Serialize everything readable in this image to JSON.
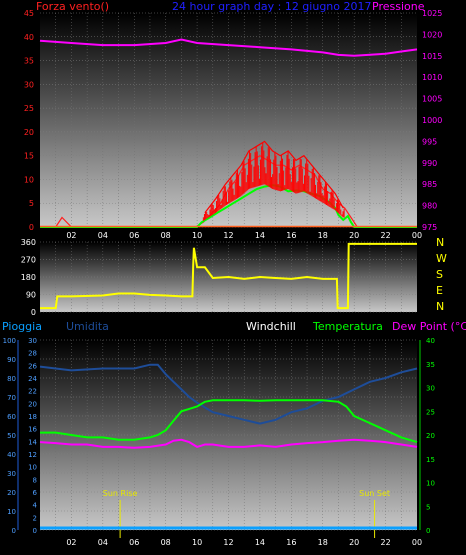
{
  "header": {
    "left_label": "Forza vento()",
    "title": "24 hour graph day : 12 giugno 2017",
    "right_label": "Pressione"
  },
  "colors": {
    "wind": "#ff2020",
    "gust": "#ff0000",
    "pressure": "#ff00ff",
    "direction": "#ffff00",
    "humidity": "#1e4d99",
    "temperature": "#00ff00",
    "dewpoint": "#ff00ff",
    "rain": "#0aa0ff",
    "windchill": "#ffffff",
    "sun": "#e8e800"
  },
  "chart_data": [
    {
      "type": "line",
      "title": "24 hour graph day : 12 giugno 2017",
      "ylabel_left": "Forza vento()",
      "ylabel_right": "Pressione",
      "x_ticks": [
        "02",
        "04",
        "06",
        "08",
        "10",
        "12",
        "14",
        "16",
        "18",
        "20",
        "22",
        "00"
      ],
      "ylim_left": [
        0,
        45
      ],
      "y_ticks_left": [
        0,
        5,
        10,
        15,
        20,
        25,
        30,
        35,
        40,
        45
      ],
      "ylim_right": [
        975,
        1025
      ],
      "y_ticks_right": [
        975,
        980,
        985,
        990,
        995,
        1000,
        1005,
        1010,
        1015,
        1020,
        1025
      ],
      "series": [
        {
          "key": "pressure",
          "axis": "right",
          "x": [
            0,
            2,
            4,
            6,
            8,
            9,
            10,
            12,
            14,
            16,
            18,
            19,
            20,
            22,
            23,
            24
          ],
          "y": [
            1018.5,
            1018.0,
            1017.5,
            1017.5,
            1018.0,
            1018.8,
            1018.0,
            1017.5,
            1017.0,
            1016.5,
            1015.8,
            1015.2,
            1015.0,
            1015.5,
            1016.0,
            1016.5
          ]
        },
        {
          "key": "wind",
          "axis": "left",
          "x": [
            0,
            1,
            1.4,
            2,
            4,
            6,
            8,
            9,
            9.9,
            10.4,
            11,
            11.5,
            12,
            12.5,
            13,
            13.5,
            14,
            14.5,
            15,
            15.5,
            16,
            16.5,
            17,
            17.5,
            18,
            18.5,
            19,
            19.4,
            19.8,
            20.2,
            21,
            22,
            24
          ],
          "y": [
            0,
            0,
            2,
            0,
            0,
            0,
            0,
            0,
            0,
            1,
            3,
            5,
            8,
            10,
            13,
            14,
            15,
            14,
            13,
            13,
            12,
            13,
            12,
            11,
            8,
            7,
            5,
            4,
            2,
            0,
            0,
            0,
            0
          ]
        },
        {
          "key": "gust",
          "axis": "left",
          "x": [
            10.5,
            11.2,
            11.8,
            12.3,
            12.8,
            13.3,
            13.8,
            14.3,
            14.8,
            15.3,
            15.8,
            16.3,
            16.8,
            17.3,
            17.8,
            18.3,
            18.8,
            19.3
          ],
          "y": [
            3,
            6,
            9,
            11,
            13,
            16,
            17,
            18,
            16,
            15,
            16,
            14,
            15,
            13,
            11,
            9,
            7,
            4
          ]
        },
        {
          "key": "temp_top",
          "axis": "left",
          "x": [
            0,
            10,
            10.3,
            10.8,
            11.3,
            11.8,
            12.3,
            12.8,
            13.3,
            13.8,
            14.3,
            14.8,
            15.3,
            15.8,
            16.3,
            16.8,
            17.3,
            17.8,
            18.3,
            18.8,
            19.0,
            19.3,
            19.6,
            19.8,
            20.0,
            21,
            24
          ],
          "y": [
            0,
            0,
            1,
            2,
            3,
            4,
            5,
            6,
            7,
            8,
            8.5,
            8.8,
            8.5,
            7.5,
            7.7,
            7.5,
            7.0,
            6.5,
            5.5,
            4,
            2.5,
            1.5,
            2.3,
            1.0,
            0,
            0,
            0
          ]
        }
      ]
    },
    {
      "type": "line",
      "y_ticks": [
        0,
        90,
        180,
        270,
        360
      ],
      "ylim": [
        0,
        360
      ],
      "direction_labels": [
        "N",
        "W",
        "S",
        "E",
        "N"
      ],
      "x_ticks": [
        "02",
        "04",
        "06",
        "08",
        "10",
        "12",
        "14",
        "16",
        "18",
        "20",
        "22",
        "00"
      ],
      "series": [
        {
          "key": "direction",
          "x": [
            0,
            1.0,
            1.1,
            2,
            4,
            5,
            6,
            7,
            8,
            9,
            9.7,
            9.75,
            9.8,
            10,
            10.5,
            11,
            12,
            13,
            14,
            15,
            16,
            17,
            18,
            18.9,
            18.95,
            19,
            19.5,
            19.6,
            19.65,
            20,
            22,
            24
          ],
          "y": [
            20,
            20,
            80,
            80,
            85,
            95,
            95,
            88,
            85,
            80,
            80,
            240,
            330,
            230,
            230,
            175,
            180,
            170,
            180,
            175,
            170,
            180,
            170,
            170,
            20,
            20,
            20,
            20,
            350,
            350,
            350,
            350
          ]
        }
      ]
    },
    {
      "type": "line",
      "legend": [
        "Pioggia",
        "Umidita",
        "Windchill",
        "Temperatura",
        "Dew Point (°C)"
      ],
      "ylim_left_outer": [
        0,
        100
      ],
      "y_ticks_left_outer": [
        0,
        10,
        20,
        30,
        40,
        50,
        60,
        70,
        80,
        90,
        100
      ],
      "ylim_left_inner": [
        0,
        30
      ],
      "y_ticks_left_inner": [
        0,
        2,
        4,
        6,
        8,
        10,
        12,
        14,
        16,
        18,
        20,
        22,
        24,
        26,
        28,
        30
      ],
      "ylim_right": [
        0,
        40
      ],
      "y_ticks_right": [
        0,
        5,
        10,
        15,
        20,
        25,
        30,
        35,
        40
      ],
      "x_ticks": [
        "02",
        "04",
        "06",
        "08",
        "10",
        "12",
        "14",
        "16",
        "18",
        "20",
        "22",
        "00"
      ],
      "annotations": [
        "Sun Rise",
        "Sun Set"
      ],
      "series": [
        {
          "key": "humidity",
          "axis": "left_outer",
          "x": [
            0,
            1,
            2,
            4,
            6,
            7,
            7.5,
            8,
            8.5,
            9,
            9.5,
            10,
            11,
            12,
            13,
            14,
            15,
            16,
            17,
            18,
            19,
            19.5,
            20,
            21,
            22,
            23,
            24
          ],
          "y": [
            86,
            85,
            84,
            85,
            85,
            87,
            87,
            82,
            78,
            74,
            70,
            67,
            62,
            60,
            58,
            56,
            58,
            62,
            64,
            68,
            70,
            72,
            74,
            78,
            80,
            83,
            85
          ]
        },
        {
          "key": "temperature",
          "axis": "right",
          "x": [
            0,
            1,
            2,
            3,
            4,
            5,
            6,
            7,
            7.5,
            8,
            8.5,
            9,
            9.5,
            10,
            10.5,
            11,
            12,
            13,
            14,
            15,
            16,
            17,
            18,
            19,
            19.5,
            20,
            21,
            22,
            23,
            24
          ],
          "y": [
            20.5,
            20.5,
            20,
            19.5,
            19.5,
            19,
            19,
            19.5,
            20,
            21,
            23,
            25,
            25.5,
            26,
            27,
            27.3,
            27.3,
            27.3,
            27.2,
            27.3,
            27.3,
            27.3,
            27.3,
            27,
            26,
            24,
            22.5,
            21,
            19.5,
            18.5
          ]
        },
        {
          "key": "dewpoint",
          "axis": "right",
          "x": [
            0,
            1,
            2,
            3,
            4,
            5,
            6,
            7,
            8,
            8.5,
            9,
            9.5,
            10,
            10.5,
            11,
            12,
            13,
            14,
            15,
            16,
            17,
            18,
            19,
            20,
            21,
            22,
            23,
            24
          ],
          "y": [
            18.5,
            18.3,
            18,
            18,
            17.5,
            17.5,
            17.3,
            17.5,
            18,
            18.8,
            19,
            18.5,
            17.5,
            18,
            18,
            17.5,
            17.5,
            17.8,
            17.5,
            18,
            18.3,
            18.5,
            18.8,
            19,
            18.8,
            18.5,
            18,
            17.5
          ]
        },
        {
          "key": "rain",
          "axis": "left_outer",
          "x": [
            0,
            24
          ],
          "y": [
            0,
            0
          ]
        }
      ]
    }
  ],
  "panel2_labels": [
    "360",
    "270",
    "180",
    "90",
    "0"
  ],
  "panel3_sun": {
    "sunrise_label": "Sun Rise",
    "sunset_label": "Sun Set",
    "sunrise_hour": 5.1,
    "sunset_hour": 21.3
  }
}
